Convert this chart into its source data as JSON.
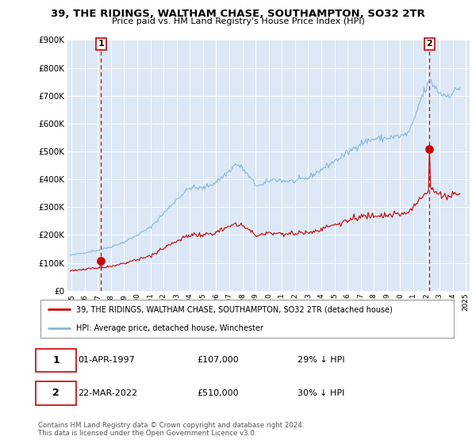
{
  "title": "39, THE RIDINGS, WALTHAM CHASE, SOUTHAMPTON, SO32 2TR",
  "subtitle": "Price paid vs. HM Land Registry's House Price Index (HPI)",
  "legend_line1": "39, THE RIDINGS, WALTHAM CHASE, SOUTHAMPTON, SO32 2TR (detached house)",
  "legend_line2": "HPI: Average price, detached house, Winchester",
  "footnote": "Contains HM Land Registry data © Crown copyright and database right 2024.\nThis data is licensed under the Open Government Licence v3.0.",
  "table_row1": [
    "1",
    "01-APR-1997",
    "£107,000",
    "29% ↓ HPI"
  ],
  "table_row2": [
    "2",
    "22-MAR-2022",
    "£510,000",
    "30% ↓ HPI"
  ],
  "point1_x": 1997.25,
  "point1_y": 107000,
  "point2_x": 2022.22,
  "point2_y": 510000,
  "property_color": "#cc0000",
  "hpi_color": "#88b8d8",
  "marker_color": "#cc0000",
  "vline_color": "#cc0000",
  "bg_color": "#dce8f5",
  "ylim": [
    0,
    900000
  ],
  "xlim_start": 1994.7,
  "xlim_end": 2025.3
}
